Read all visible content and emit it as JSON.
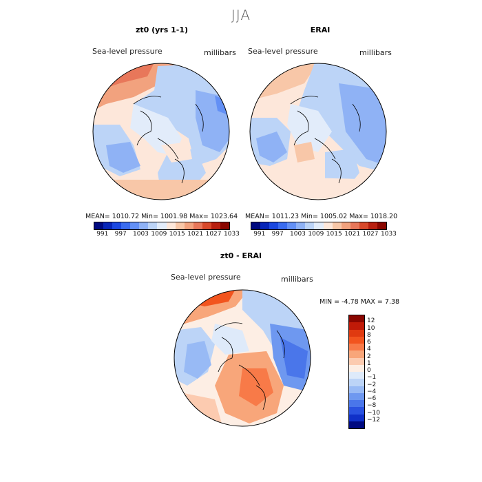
{
  "title": "JJA",
  "panels": [
    {
      "title": "zt0 (yrs 1-1)",
      "variable": "Sea-level pressure",
      "units": "millibars",
      "stats": "MEAN= 1010.72   Min= 1001.98   Max= 1023.64"
    },
    {
      "title": "ERAI",
      "variable": "Sea-level pressure",
      "units": "millibars",
      "stats": "MEAN= 1011.23   Min= 1005.02   Max= 1018.20"
    }
  ],
  "colorbar": {
    "colors": [
      "#000a80",
      "#0826b8",
      "#1b48e0",
      "#3a6cf0",
      "#6390f5",
      "#8fb2f5",
      "#bcd4f7",
      "#e2ecfa",
      "#fde7da",
      "#f8c7a8",
      "#f2a27e",
      "#e8775a",
      "#d8492b",
      "#b82010",
      "#8a0600"
    ],
    "labels": [
      "991",
      "997",
      "1003",
      "1009",
      "1015",
      "1021",
      "1027",
      "1033"
    ]
  },
  "diff_panel": {
    "title": "zt0 - ERAI",
    "variable": "Sea-level pressure",
    "units": "millibars",
    "min_max": "MIN =   -4.78 MAX =    7.38",
    "colors": [
      "#8a0600",
      "#c01a08",
      "#e03a10",
      "#f2541e",
      "#f87a48",
      "#f8a67a",
      "#fccbb0",
      "#fdeee4",
      "#deeafa",
      "#bcd4f7",
      "#98baf5",
      "#6e98f0",
      "#4a76ea",
      "#2a52e0",
      "#1030c8",
      "#000a80"
    ],
    "labels": [
      "12",
      "10",
      "8",
      "6",
      "4",
      "2",
      "1",
      "0",
      "-1",
      "-2",
      "-4",
      "-6",
      "-8",
      "-10",
      "-12"
    ]
  }
}
